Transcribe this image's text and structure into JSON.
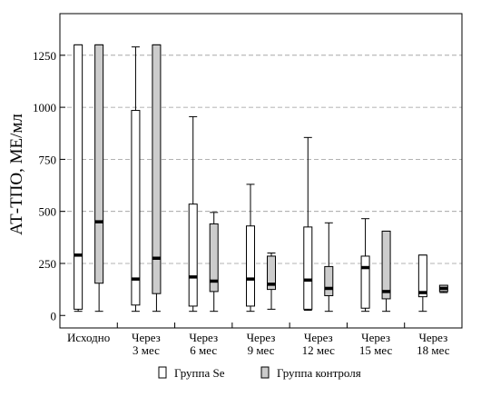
{
  "chart_data": {
    "type": "boxplot",
    "ylabel": "АТ-ТПО, МЕ/мл",
    "ylim": [
      -60,
      1450
    ],
    "yticks": [
      0,
      250,
      500,
      750,
      1000,
      1250
    ],
    "grid": "horizontal dashed",
    "legend_position": "bottom",
    "categories": [
      [
        "Исходно"
      ],
      [
        "Через",
        "3 мес"
      ],
      [
        "Через",
        "6 мес"
      ],
      [
        "Через",
        "9 мес"
      ],
      [
        "Через",
        "12 мес"
      ],
      [
        "Через",
        "15 мес"
      ],
      [
        "Через",
        "18 мес"
      ]
    ],
    "series": [
      {
        "name": "Группа Se",
        "color": "#ffffff",
        "boxes": [
          {
            "min": 20,
            "q1": 30,
            "median": 290,
            "q3": 1300,
            "max": 1300
          },
          {
            "min": 20,
            "q1": 50,
            "median": 175,
            "q3": 985,
            "max": 1290
          },
          {
            "min": 20,
            "q1": 45,
            "median": 185,
            "q3": 535,
            "max": 955
          },
          {
            "min": 20,
            "q1": 45,
            "median": 175,
            "q3": 430,
            "max": 630
          },
          {
            "min": 25,
            "q1": 30,
            "median": 170,
            "q3": 425,
            "max": 855
          },
          {
            "min": 20,
            "q1": 35,
            "median": 230,
            "q3": 285,
            "max": 465
          },
          {
            "min": 20,
            "q1": 90,
            "median": 110,
            "q3": 290,
            "max": 290
          }
        ]
      },
      {
        "name": "Группа контроля",
        "color": "#cccccc",
        "boxes": [
          {
            "min": 20,
            "q1": 155,
            "median": 450,
            "q3": 1300,
            "max": 1300
          },
          {
            "min": 20,
            "q1": 105,
            "median": 275,
            "q3": 1300,
            "max": 1300
          },
          {
            "min": 20,
            "q1": 115,
            "median": 165,
            "q3": 440,
            "max": 495
          },
          {
            "min": 30,
            "q1": 125,
            "median": 150,
            "q3": 285,
            "max": 300
          },
          {
            "min": 20,
            "q1": 95,
            "median": 130,
            "q3": 235,
            "max": 445
          },
          {
            "min": 20,
            "q1": 80,
            "median": 115,
            "q3": 405,
            "max": 405
          },
          {
            "min": 110,
            "q1": 115,
            "median": 130,
            "q3": 145,
            "max": 145
          }
        ]
      }
    ]
  }
}
